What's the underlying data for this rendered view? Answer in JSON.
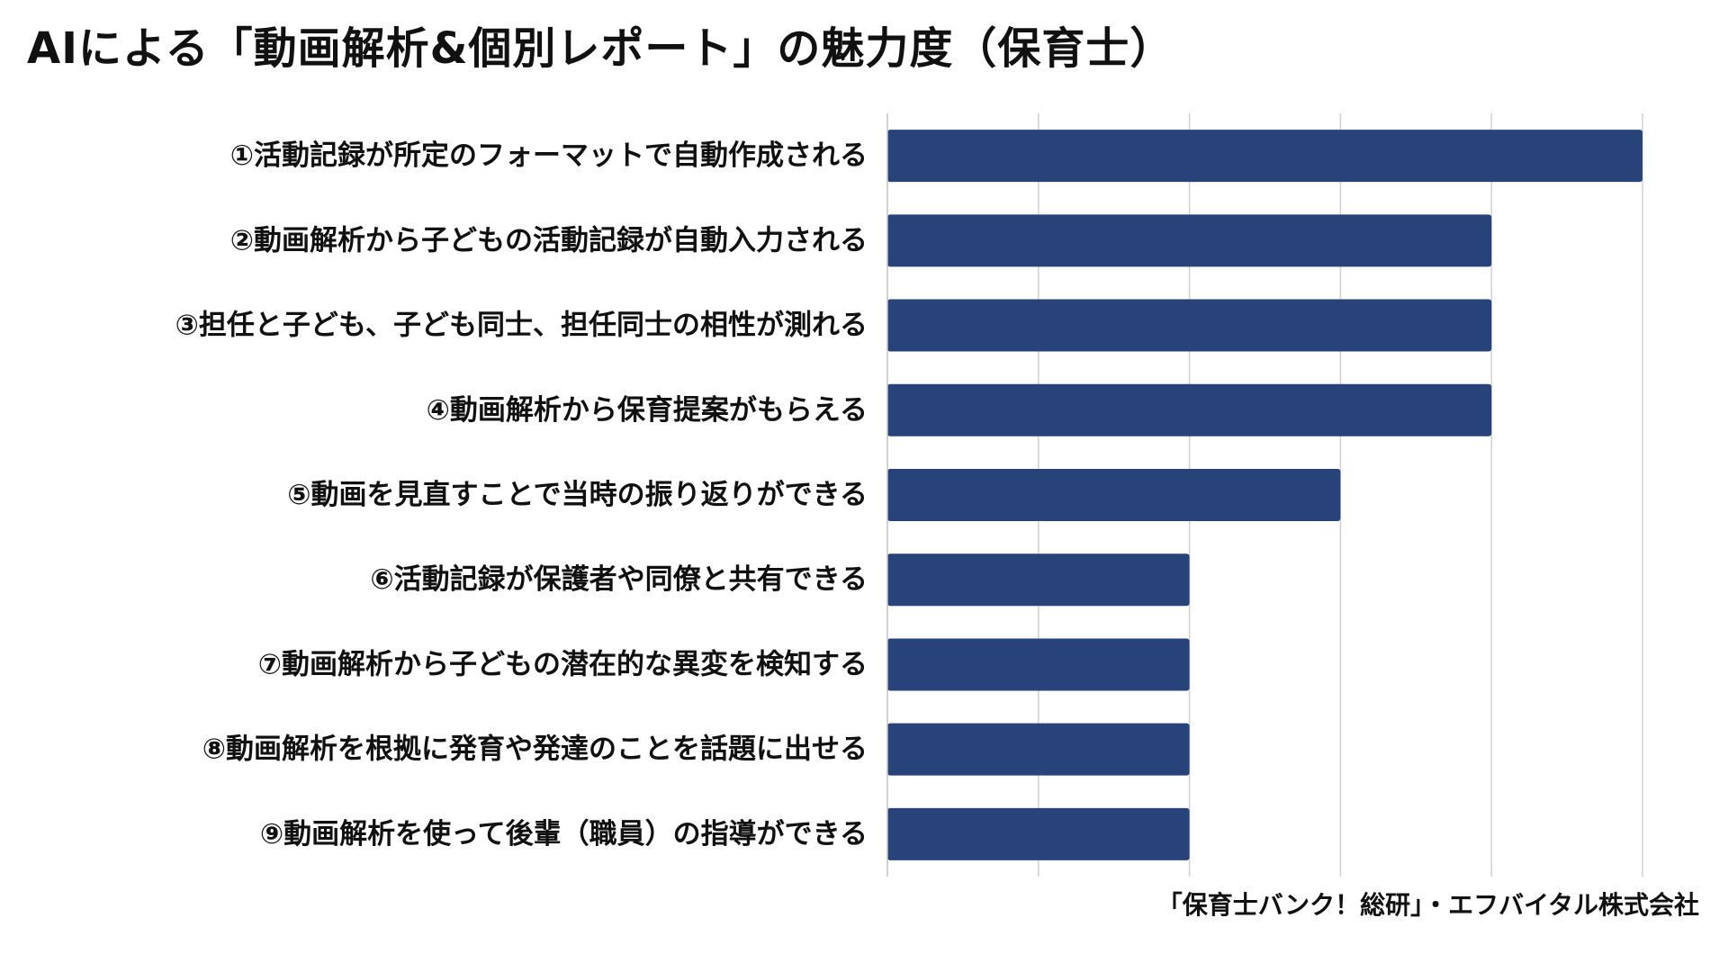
{
  "title": "AIによる「動画解析&個別レポート」の魅力度（保育士）",
  "source": "「保育士バンク！総研」・エフバイタル株式会社",
  "chart_data": {
    "type": "bar",
    "orientation": "horizontal",
    "title": "AIによる「動画解析&個別レポート」の魅力度（保育士）",
    "categories": [
      "①活動記録が所定のフォーマットで自動作成される",
      "②動画解析から子どもの活動記録が自動入力される",
      "③担任と子ども、子ども同士、担任同士の相性が測れる",
      "④動画解析から保育提案がもらえる",
      "⑤動画を見直すことで当時の振り返りができる",
      "⑥活動記録が保護者や同僚と共有できる",
      "⑦動画解析から子どもの潜在的な異変を検知する",
      "⑧動画解析を根拠に発育や発達のことを話題に出せる",
      "⑨動画解析を使って後輩（職員）の指導ができる"
    ],
    "values": [
      5,
      4,
      4,
      4,
      3,
      2,
      2,
      2,
      2
    ],
    "xlim": [
      0,
      5
    ],
    "tick_step": 1,
    "xlabel": "",
    "ylabel": "",
    "tick_labels_visible": false,
    "grid": "vertical",
    "legend": "none",
    "bar_color": "#27437a",
    "grid_color": "#d0d0d0",
    "axis_color": "#c4c4c4"
  }
}
